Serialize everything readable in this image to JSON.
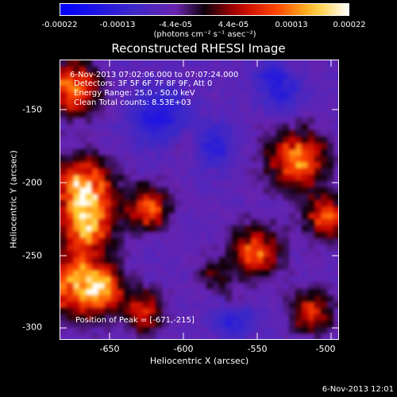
{
  "colorbar": {
    "ticks": [
      "-0.00022",
      "-0.00013",
      "-4.4e-05",
      "4.4e-05",
      "0.00013",
      "0.00022"
    ],
    "unit_label": "(photons cm⁻² s⁻¹ asec⁻²)",
    "range": [
      -0.00022,
      0.00022
    ]
  },
  "chart_data": {
    "type": "heatmap",
    "title": "Reconstructed RHESSI Image",
    "xlabel": "Heliocentric X (arcsec)",
    "ylabel": "Heliocentric Y (arcsec)",
    "xlim": [
      -685,
      -495
    ],
    "ylim": [
      -305,
      -115
    ],
    "x_ticks": [
      -650,
      -600,
      -550,
      -500
    ],
    "y_ticks": [
      -150,
      -200,
      -250,
      -300
    ],
    "colormap": "blue-purple-red-yellow-white",
    "peak_position": [
      -671,
      -215
    ]
  },
  "annotations": {
    "time_range": "6-Nov-2013 07:02:06.000 to 07:07:24.000",
    "detectors": "Detectors: 3F 5F 6F 7F 8F 9F, Att 0",
    "energy": "Energy Range: 25.0 - 50.0 keV",
    "clean": "Clean     Total counts: 8.53E+03",
    "peak": "Position of Peak = [-671,-215]"
  },
  "x_tick_labels": [
    "-650",
    "-600",
    "-550",
    "-500"
  ],
  "y_tick_labels": [
    "-150",
    "-200",
    "-250",
    "-300"
  ],
  "datestamp": "6-Nov-2013 12:01"
}
